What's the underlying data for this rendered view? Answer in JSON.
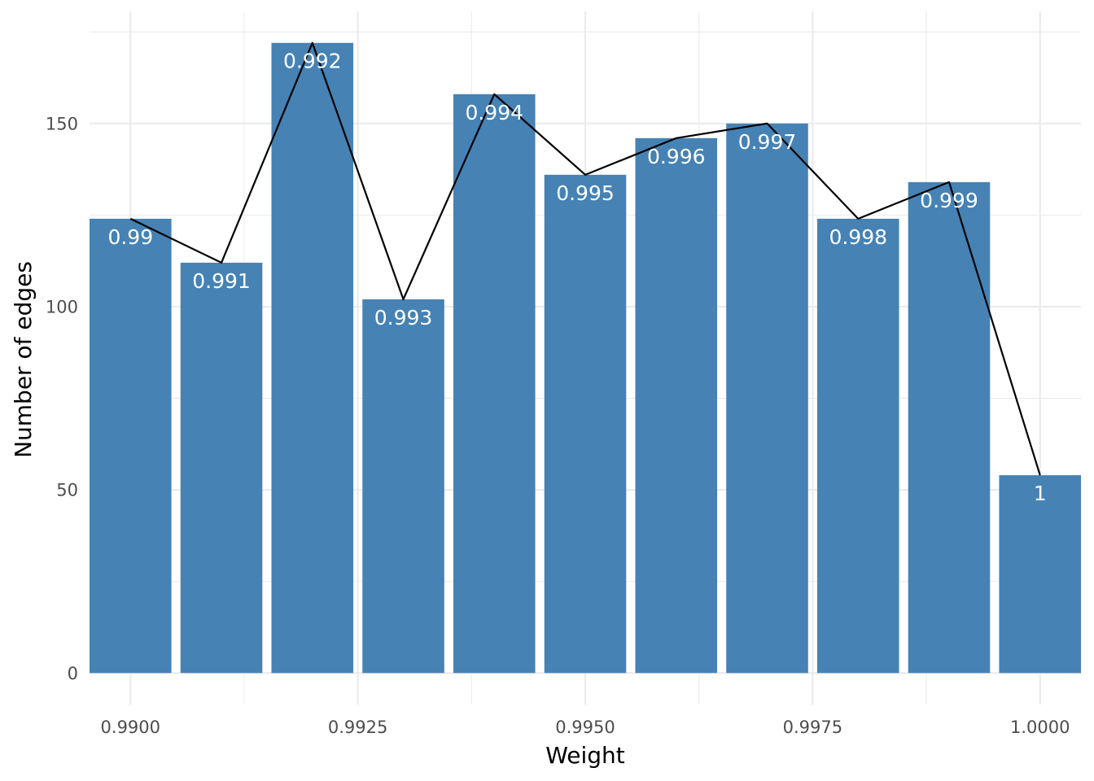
{
  "chart_data": {
    "type": "bar",
    "x": [
      0.99,
      0.991,
      0.992,
      0.993,
      0.994,
      0.995,
      0.996,
      0.997,
      0.998,
      0.999,
      1.0
    ],
    "values": [
      124,
      112,
      172,
      102,
      158,
      136,
      146,
      150,
      124,
      134,
      54
    ],
    "bar_labels": [
      "0.99",
      "0.991",
      "0.992",
      "0.993",
      "0.994",
      "0.995",
      "0.996",
      "0.997",
      "0.998",
      "0.999",
      "1"
    ],
    "xlabel": "Weight",
    "ylabel": "Number of edges",
    "x_ticks": [
      0.99,
      0.9925,
      0.995,
      0.9975,
      1.0
    ],
    "x_tick_labels": [
      "0.9900",
      "0.9925",
      "0.9950",
      "0.9975",
      "1.0000"
    ],
    "y_ticks": [
      0,
      50,
      100,
      150
    ],
    "y_tick_labels": [
      "0",
      "50",
      "100",
      "150"
    ],
    "xlim": [
      0.98955,
      1.00045
    ],
    "ylim": [
      -8.6,
      180.6
    ],
    "grid": true,
    "overlay_line": true,
    "colors": {
      "bar": "#4682b4",
      "line": "#000000",
      "grid": "#ebebeb",
      "bar_label": "#ffffff"
    }
  }
}
